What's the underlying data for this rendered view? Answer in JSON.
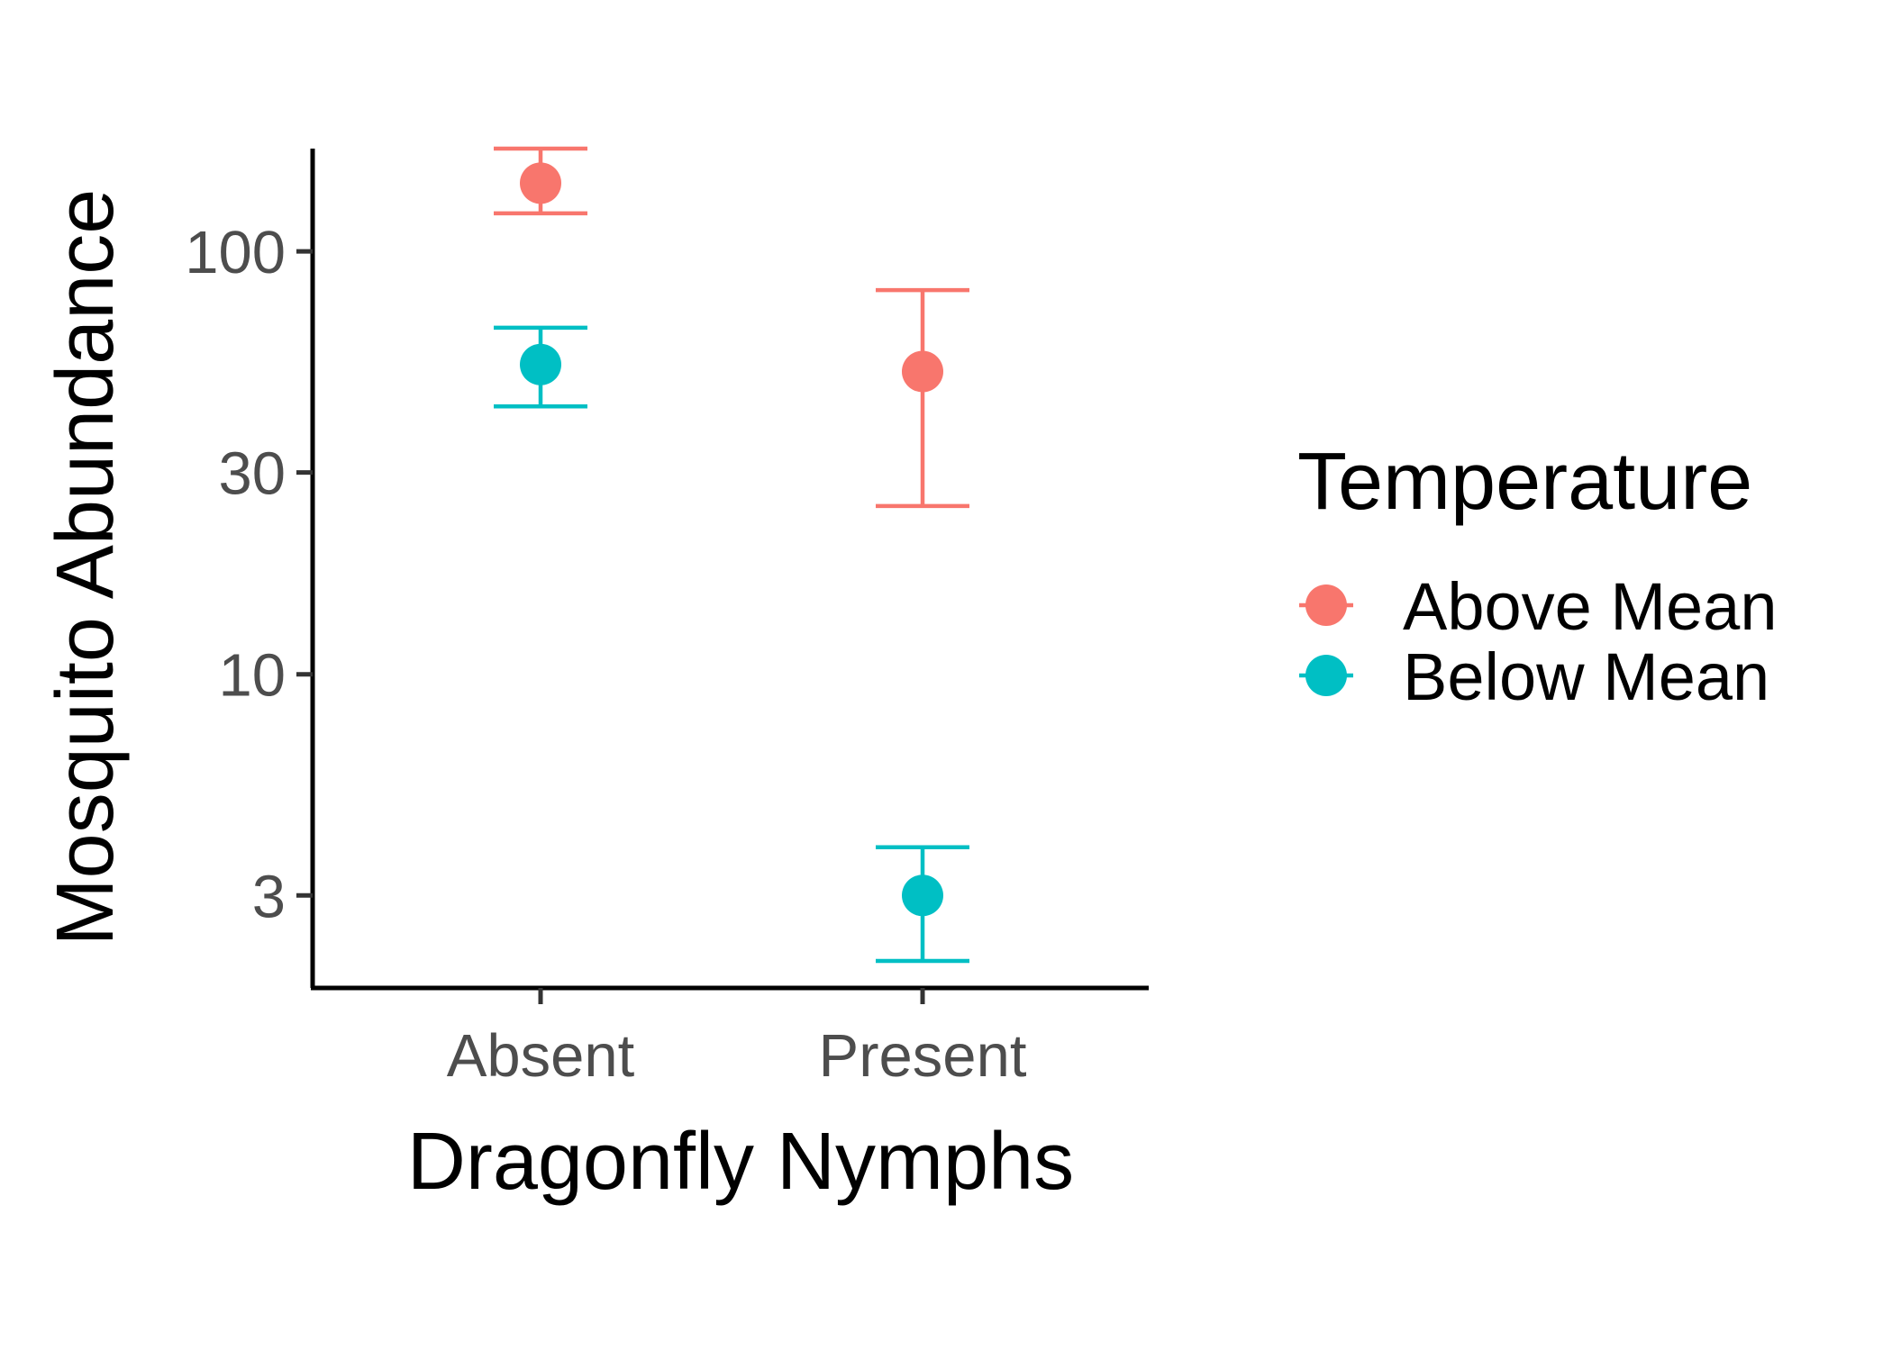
{
  "chart_data": {
    "type": "scatter",
    "title": "",
    "xlabel": "Dragonfly Nymphs",
    "ylabel": "Mosquito Abundance",
    "y_scale": "log10",
    "ylim": [
      2.1,
      175
    ],
    "y_ticks": [
      3,
      10,
      30,
      100
    ],
    "y_tick_labels": [
      "3",
      "10",
      "30",
      "100"
    ],
    "categories": [
      "Absent",
      "Present"
    ],
    "grid": false,
    "legend": {
      "title": "Temperature",
      "position": "right"
    },
    "series": [
      {
        "name": "Above Mean",
        "color": "#F8766D",
        "points": [
          {
            "x": "Absent",
            "y": 145,
            "ymin": 123,
            "ymax": 175
          },
          {
            "x": "Present",
            "y": 52,
            "ymin": 25,
            "ymax": 81
          }
        ]
      },
      {
        "name": "Below Mean",
        "color": "#00BFC4",
        "points": [
          {
            "x": "Absent",
            "y": 54,
            "ymin": 43,
            "ymax": 66
          },
          {
            "x": "Present",
            "y": 3,
            "ymin": 2.1,
            "ymax": 3.9
          }
        ]
      }
    ]
  }
}
